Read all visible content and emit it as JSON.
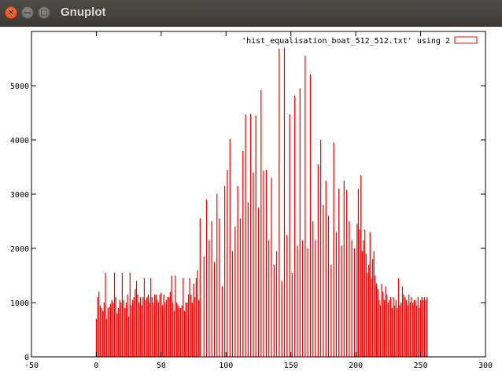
{
  "window": {
    "title": "Gnuplot",
    "close_glyph": "✕",
    "minimize_glyph": "—",
    "maximize_glyph": "▢"
  },
  "status_text": "",
  "chart_data": {
    "type": "bar",
    "title": "",
    "xlabel": "",
    "ylabel": "",
    "xlim": [
      -50,
      300
    ],
    "ylim": [
      0,
      6000
    ],
    "xticks": [
      -50,
      0,
      50,
      100,
      150,
      200,
      250,
      300
    ],
    "yticks": [
      0,
      1000,
      2000,
      3000,
      4000,
      5000
    ],
    "grid": false,
    "legend_position": "top-right",
    "series": [
      {
        "name": "'hist_equalisation_boat_512_512.txt' using 2",
        "color": "#ff0000",
        "points": [
          [
            0,
            700
          ],
          [
            1,
            1100
          ],
          [
            2,
            1200
          ],
          [
            3,
            950
          ],
          [
            4,
            900
          ],
          [
            5,
            850
          ],
          [
            6,
            1000
          ],
          [
            7,
            1550
          ],
          [
            8,
            700
          ],
          [
            9,
            900
          ],
          [
            10,
            920
          ],
          [
            11,
            980
          ],
          [
            12,
            1050
          ],
          [
            13,
            1000
          ],
          [
            14,
            1550
          ],
          [
            15,
            1100
          ],
          [
            16,
            800
          ],
          [
            17,
            900
          ],
          [
            18,
            1050
          ],
          [
            19,
            1000
          ],
          [
            20,
            1550
          ],
          [
            21,
            1050
          ],
          [
            22,
            900
          ],
          [
            23,
            1000
          ],
          [
            24,
            1150
          ],
          [
            25,
            750
          ],
          [
            26,
            1550
          ],
          [
            27,
            950
          ],
          [
            28,
            1050
          ],
          [
            29,
            1100
          ],
          [
            30,
            1250
          ],
          [
            31,
            1400
          ],
          [
            32,
            1150
          ],
          [
            33,
            1000
          ],
          [
            34,
            1100
          ],
          [
            35,
            950
          ],
          [
            36,
            1100
          ],
          [
            37,
            1450
          ],
          [
            38,
            1050
          ],
          [
            39,
            1100
          ],
          [
            40,
            1150
          ],
          [
            41,
            1000
          ],
          [
            42,
            1450
          ],
          [
            43,
            1100
          ],
          [
            44,
            1000
          ],
          [
            45,
            1150
          ],
          [
            46,
            1150
          ],
          [
            47,
            1050
          ],
          [
            48,
            1000
          ],
          [
            49,
            1150
          ],
          [
            50,
            1180
          ],
          [
            51,
            950
          ],
          [
            52,
            1150
          ],
          [
            53,
            1000
          ],
          [
            54,
            1050
          ],
          [
            55,
            1100
          ],
          [
            56,
            1100
          ],
          [
            57,
            1200
          ],
          [
            58,
            1500
          ],
          [
            59,
            1000
          ],
          [
            60,
            850
          ],
          [
            61,
            1500
          ],
          [
            62,
            1000
          ],
          [
            63,
            950
          ],
          [
            64,
            900
          ],
          [
            65,
            900
          ],
          [
            66,
            950
          ],
          [
            67,
            1450
          ],
          [
            68,
            850
          ],
          [
            69,
            1000
          ],
          [
            70,
            1000
          ],
          [
            71,
            1150
          ],
          [
            72,
            1450
          ],
          [
            73,
            1150
          ],
          [
            74,
            1000
          ],
          [
            75,
            1350
          ],
          [
            76,
            1100
          ],
          [
            77,
            1450
          ],
          [
            78,
            1600
          ],
          [
            79,
            1050
          ],
          [
            80,
            2550
          ],
          [
            83,
            1850
          ],
          [
            85,
            2900
          ],
          [
            87,
            2150
          ],
          [
            89,
            2500
          ],
          [
            91,
            1750
          ],
          [
            93,
            3000
          ],
          [
            95,
            2550
          ],
          [
            97,
            1300
          ],
          [
            99,
            3150
          ],
          [
            101,
            3450
          ],
          [
            103,
            4020
          ],
          [
            105,
            1950
          ],
          [
            107,
            2400
          ],
          [
            109,
            3150
          ],
          [
            111,
            2550
          ],
          [
            113,
            3800
          ],
          [
            115,
            4470
          ],
          [
            117,
            2850
          ],
          [
            119,
            4480
          ],
          [
            121,
            3400
          ],
          [
            123,
            4450
          ],
          [
            125,
            2750
          ],
          [
            127,
            4920
          ],
          [
            129,
            3430
          ],
          [
            131,
            3450
          ],
          [
            133,
            2150
          ],
          [
            135,
            3300
          ],
          [
            137,
            1700
          ],
          [
            139,
            1950
          ],
          [
            141,
            5680
          ],
          [
            143,
            1400
          ],
          [
            145,
            5700
          ],
          [
            147,
            2250
          ],
          [
            149,
            4470
          ],
          [
            151,
            1550
          ],
          [
            153,
            4820
          ],
          [
            155,
            2050
          ],
          [
            157,
            4950
          ],
          [
            159,
            2150
          ],
          [
            161,
            5550
          ],
          [
            163,
            2000
          ],
          [
            165,
            5210
          ],
          [
            167,
            2500
          ],
          [
            169,
            2150
          ],
          [
            171,
            3550
          ],
          [
            173,
            4000
          ],
          [
            175,
            2800
          ],
          [
            177,
            3250
          ],
          [
            179,
            2600
          ],
          [
            181,
            1700
          ],
          [
            183,
            3950
          ],
          [
            185,
            2300
          ],
          [
            187,
            3100
          ],
          [
            189,
            2050
          ],
          [
            191,
            3250
          ],
          [
            193,
            3080
          ],
          [
            195,
            2500
          ],
          [
            197,
            2150
          ],
          [
            199,
            2000
          ],
          [
            201,
            2450
          ],
          [
            202,
            3100
          ],
          [
            203,
            2350
          ],
          [
            204,
            3350
          ],
          [
            205,
            1950
          ],
          [
            206,
            2150
          ],
          [
            207,
            2350
          ],
          [
            208,
            1900
          ],
          [
            209,
            1550
          ],
          [
            210,
            1700
          ],
          [
            211,
            2300
          ],
          [
            212,
            1450
          ],
          [
            213,
            1800
          ],
          [
            214,
            1950
          ],
          [
            215,
            1500
          ],
          [
            216,
            1350
          ],
          [
            217,
            1250
          ],
          [
            218,
            1050
          ],
          [
            219,
            950
          ],
          [
            220,
            1350
          ],
          [
            221,
            1200
          ],
          [
            222,
            1050
          ],
          [
            223,
            1300
          ],
          [
            224,
            1150
          ],
          [
            225,
            1000
          ],
          [
            226,
            1050
          ],
          [
            227,
            1100
          ],
          [
            228,
            900
          ],
          [
            229,
            1100
          ],
          [
            230,
            950
          ],
          [
            231,
            1050
          ],
          [
            232,
            900
          ],
          [
            233,
            1450
          ],
          [
            234,
            950
          ],
          [
            235,
            1000
          ],
          [
            236,
            1300
          ],
          [
            237,
            1150
          ],
          [
            238,
            1100
          ],
          [
            239,
            1050
          ],
          [
            240,
            950
          ],
          [
            241,
            1150
          ],
          [
            242,
            1000
          ],
          [
            243,
            1100
          ],
          [
            244,
            1000
          ],
          [
            245,
            1050
          ],
          [
            246,
            1050
          ],
          [
            247,
            950
          ],
          [
            248,
            1100
          ],
          [
            249,
            900
          ],
          [
            250,
            1050
          ],
          [
            251,
            1100
          ],
          [
            252,
            1050
          ],
          [
            253,
            1100
          ],
          [
            254,
            1050
          ],
          [
            255,
            1100
          ]
        ]
      }
    ]
  }
}
